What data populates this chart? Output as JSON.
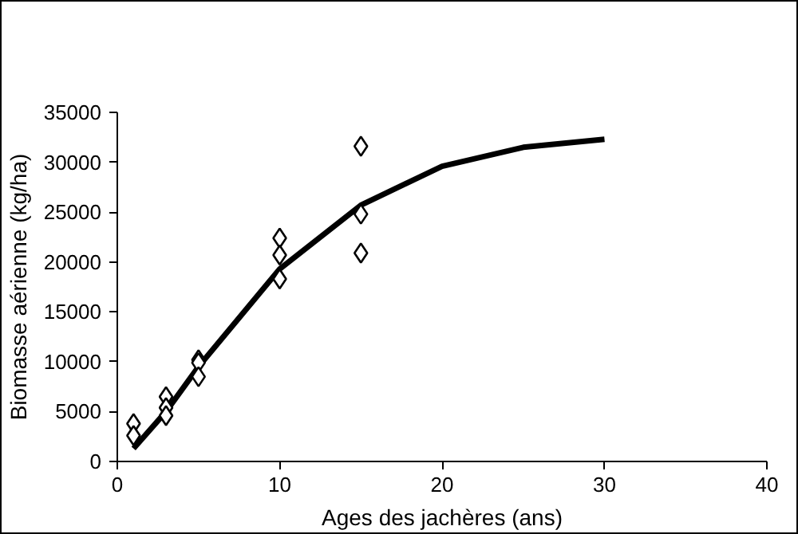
{
  "chart_data": {
    "type": "scatter",
    "xlabel": "Ages des jachères (ans)",
    "ylabel": "Biomasse aérienne (kg/ha)",
    "xlim": [
      0,
      40
    ],
    "xticks": [
      0,
      10,
      20,
      30,
      40
    ],
    "ylim": [
      0,
      35000
    ],
    "yticks": [
      0,
      5000,
      10000,
      15000,
      20000,
      25000,
      30000,
      35000
    ],
    "grid": false,
    "series": [
      {
        "type": "line",
        "marker": "none",
        "line_style": "solid",
        "color": "#000000",
        "x": [
          1,
          3,
          5,
          10,
          15,
          20,
          25,
          30
        ],
        "values": [
          1300,
          5000,
          9500,
          19300,
          25700,
          29600,
          31500,
          32300
        ]
      },
      {
        "marker": "diamond",
        "color": "#000000",
        "x": [
          1,
          1,
          3,
          3,
          3,
          5,
          5,
          5,
          10,
          10,
          10,
          15,
          15,
          15
        ],
        "values": [
          3800,
          2600,
          6500,
          5400,
          4600,
          10200,
          9900,
          8500,
          22400,
          20700,
          18300,
          31600,
          24800,
          20900
        ]
      }
    ]
  }
}
